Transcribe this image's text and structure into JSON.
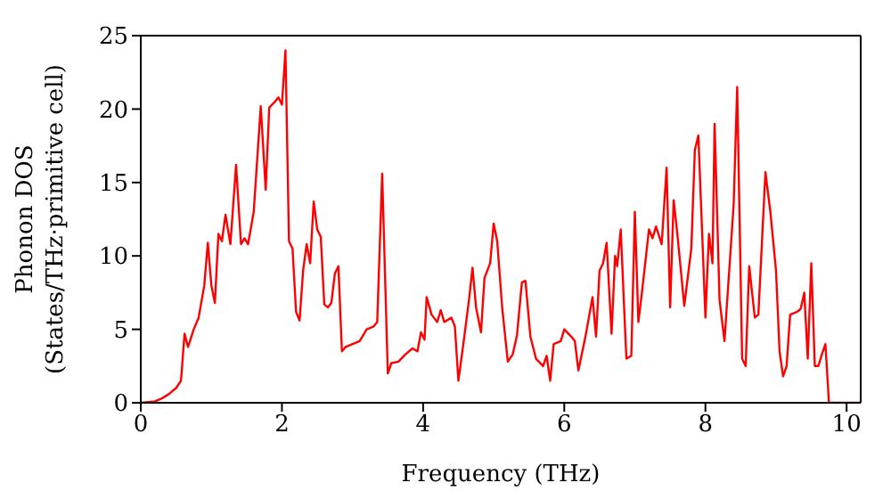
{
  "chart_data": {
    "type": "line",
    "xlabel": "Frequency (THz)",
    "ylabel": "Phonon DOS\n(States/THz·primitive cell)",
    "xlim": [
      0,
      10.2
    ],
    "xticks": [
      0,
      2,
      4,
      6,
      8,
      10
    ],
    "ylim": [
      0,
      25
    ],
    "yticks": [
      0,
      5,
      10,
      15,
      20,
      25
    ],
    "marker": "none",
    "line_style": "solid",
    "series": [
      {
        "color": "#ff0000",
        "x": [
          0,
          0.2,
          0.3,
          0.4,
          0.5,
          0.57,
          0.62,
          0.67,
          0.75,
          0.82,
          0.9,
          0.95,
          1.0,
          1.05,
          1.1,
          1.15,
          1.2,
          1.27,
          1.35,
          1.42,
          1.47,
          1.52,
          1.6,
          1.7,
          1.77,
          1.82,
          1.9,
          1.95,
          2.0,
          2.05,
          2.1,
          2.15,
          2.2,
          2.25,
          2.3,
          2.35,
          2.4,
          2.45,
          2.5,
          2.55,
          2.6,
          2.65,
          2.7,
          2.75,
          2.8,
          2.85,
          2.9,
          3.0,
          3.1,
          3.2,
          3.3,
          3.35,
          3.42,
          3.5,
          3.55,
          3.65,
          3.75,
          3.85,
          3.92,
          3.97,
          4.02,
          4.05,
          4.12,
          4.2,
          4.25,
          4.3,
          4.4,
          4.45,
          4.5,
          4.57,
          4.65,
          4.7,
          4.75,
          4.82,
          4.87,
          4.95,
          5.0,
          5.05,
          5.12,
          5.2,
          5.27,
          5.33,
          5.4,
          5.45,
          5.52,
          5.6,
          5.7,
          5.75,
          5.8,
          5.85,
          5.95,
          6.0,
          6.1,
          6.15,
          6.2,
          6.3,
          6.4,
          6.45,
          6.5,
          6.55,
          6.6,
          6.67,
          6.72,
          6.75,
          6.8,
          6.88,
          6.95,
          7.0,
          7.05,
          7.1,
          7.2,
          7.25,
          7.3,
          7.38,
          7.45,
          7.5,
          7.55,
          7.6,
          7.7,
          7.8,
          7.85,
          7.9,
          8.0,
          8.05,
          8.1,
          8.13,
          8.2,
          8.27,
          8.4,
          8.45,
          8.52,
          8.57,
          8.62,
          8.7,
          8.75,
          8.85,
          8.92,
          9.0,
          9.05,
          9.1,
          9.15,
          9.2,
          9.3,
          9.35,
          9.4,
          9.45,
          9.5,
          9.55,
          9.6,
          9.65,
          9.7,
          9.75,
          10.2
        ],
        "values": [
          0,
          0.1,
          0.3,
          0.6,
          1,
          1.5,
          4.7,
          3.8,
          5,
          5.8,
          8,
          10.9,
          8,
          6.8,
          11.5,
          11,
          12.8,
          10.8,
          16.2,
          10.8,
          11.2,
          10.8,
          13,
          20.2,
          14.5,
          20.1,
          20.5,
          20.8,
          20.3,
          24,
          11,
          10.5,
          6.2,
          5.6,
          9,
          10.8,
          9.5,
          13.7,
          11.8,
          11.3,
          6.7,
          6.5,
          6.8,
          8.8,
          9.3,
          3.5,
          3.8,
          4,
          4.2,
          5,
          5.2,
          5.5,
          15.6,
          2,
          2.7,
          2.8,
          3.3,
          3.7,
          3.5,
          4.8,
          4.3,
          7.2,
          6,
          5.5,
          6.3,
          5.5,
          5.8,
          5.2,
          1.5,
          4,
          7,
          9.2,
          6.5,
          4.8,
          8.5,
          9.5,
          12.2,
          11,
          6.5,
          2.8,
          3.3,
          4.6,
          8.2,
          8.3,
          4.5,
          3,
          2.5,
          3.2,
          1.5,
          4,
          4.2,
          5,
          4.5,
          4.2,
          2.2,
          4.5,
          7.2,
          4.5,
          9,
          9.5,
          10.9,
          4.7,
          10,
          9.3,
          11.8,
          3,
          3.2,
          13,
          5.5,
          7.5,
          11.8,
          11.2,
          12,
          10.8,
          16,
          6.5,
          13.8,
          11.6,
          6.6,
          10.5,
          17.2,
          18.2,
          5.8,
          11.5,
          9.5,
          19,
          7,
          4.2,
          13.5,
          21.5,
          3,
          2.5,
          9.3,
          5.8,
          6,
          15.7,
          13,
          9,
          3.5,
          1.8,
          2.5,
          6,
          6.2,
          6.4,
          7.5,
          3,
          9.5,
          2.5,
          2.5,
          3.3,
          4,
          0,
          0
        ]
      }
    ]
  }
}
